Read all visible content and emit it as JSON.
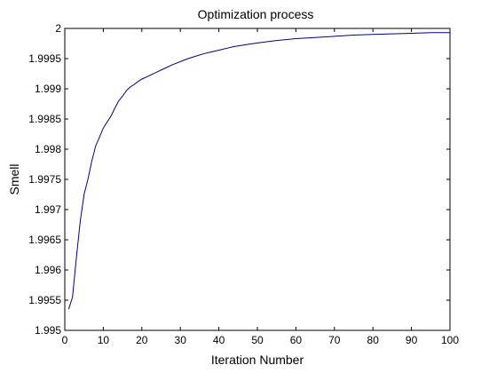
{
  "chart_data": {
    "type": "line",
    "title": "Optimization process",
    "xlabel": "Iteration Number",
    "ylabel": "Smell",
    "xlim": [
      0,
      100
    ],
    "ylim": [
      1.995,
      2
    ],
    "grid": false,
    "x_ticks": [
      0,
      10,
      20,
      30,
      40,
      50,
      60,
      70,
      80,
      90,
      100
    ],
    "x_tick_labels": [
      "0",
      "10",
      "20",
      "30",
      "40",
      "50",
      "60",
      "70",
      "80",
      "90",
      "100"
    ],
    "y_ticks": [
      1.995,
      1.9955,
      1.996,
      1.9965,
      1.997,
      1.9975,
      1.998,
      1.9985,
      1.999,
      1.9995,
      2
    ],
    "y_tick_labels": [
      "1.995",
      "1.9955",
      "1.996",
      "1.9965",
      "1.997",
      "1.9975",
      "1.998",
      "1.9985",
      "1.999",
      "1.9995",
      "2"
    ],
    "series": [
      {
        "color": "#00008b",
        "x": [
          1,
          2,
          3,
          4,
          5,
          6,
          7,
          8,
          9,
          10,
          11,
          12,
          13,
          14,
          15,
          16,
          17,
          18,
          19,
          20,
          22,
          24,
          26,
          28,
          30,
          32,
          34,
          36,
          38,
          40,
          42,
          44,
          46,
          48,
          50,
          55,
          60,
          65,
          70,
          75,
          80,
          85,
          90,
          95,
          100
        ],
        "values": [
          1.99535,
          1.99555,
          1.9962,
          1.9968,
          1.99725,
          1.9975,
          1.9978,
          1.99805,
          1.9982,
          1.99835,
          1.99845,
          1.99855,
          1.99868,
          1.9988,
          1.99888,
          1.99897,
          1.99903,
          1.99907,
          1.99912,
          1.99916,
          1.99922,
          1.99928,
          1.99934,
          1.9994,
          1.99945,
          1.9995,
          1.99954,
          1.99958,
          1.99961,
          1.99964,
          1.99967,
          1.9997,
          1.99972,
          1.99974,
          1.99976,
          1.9998,
          1.99983,
          1.99985,
          1.99987,
          1.99989,
          1.9999,
          1.99991,
          1.99992,
          1.99993,
          1.99993
        ]
      }
    ]
  }
}
